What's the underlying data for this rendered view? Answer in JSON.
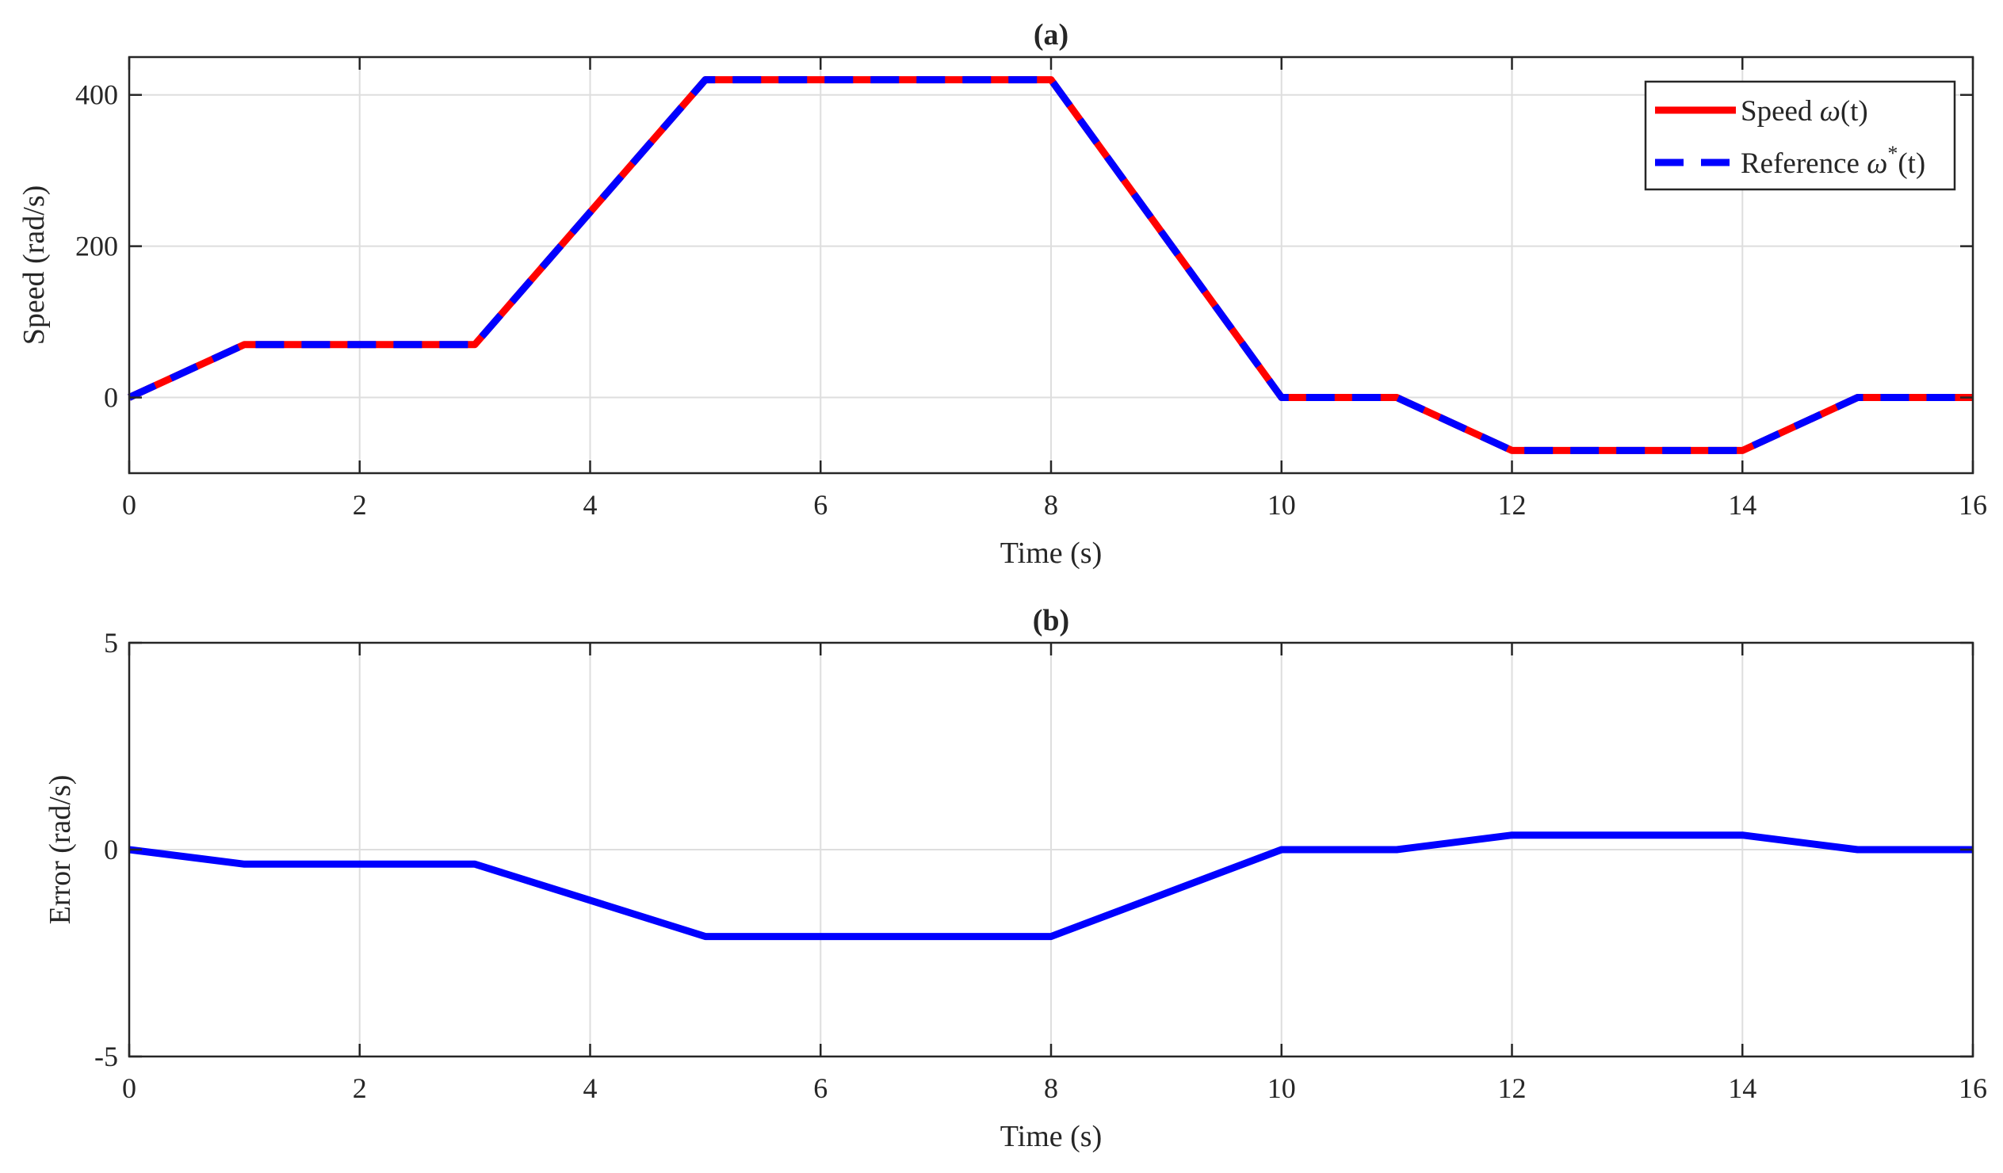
{
  "chart_data": [
    {
      "type": "line",
      "title": "(a)",
      "xlabel": "Time (s)",
      "ylabel": "Speed (rad/s)",
      "xlim": [
        0,
        16
      ],
      "ylim": [
        -100,
        450
      ],
      "xticks": [
        0,
        2,
        4,
        6,
        8,
        10,
        12,
        14,
        16
      ],
      "xtick_labels": [
        "0",
        "2",
        "4",
        "6",
        "8",
        "10",
        "12",
        "14",
        "16"
      ],
      "yticks": [
        0,
        200,
        400
      ],
      "ytick_labels": [
        "0",
        "200",
        "400"
      ],
      "grid": true,
      "legend": {
        "position": "top-right",
        "entries": [
          {
            "prefix": "Speed ",
            "symbol": "ω",
            "superscript": "",
            "suffix": "(t)"
          },
          {
            "prefix": "Reference ",
            "symbol": "ω",
            "superscript": "*",
            "suffix": "(t)"
          }
        ]
      },
      "series": [
        {
          "color": "#ff0000",
          "style": "solid",
          "x": [
            0,
            1,
            3,
            5,
            8,
            10,
            11,
            12,
            14,
            15,
            16
          ],
          "y": [
            0,
            70,
            70,
            420,
            420,
            0,
            0,
            -70,
            -70,
            0,
            0
          ]
        },
        {
          "color": "#0000ff",
          "style": "dashed",
          "x": [
            0,
            1,
            3,
            5,
            8,
            10,
            11,
            12,
            14,
            15,
            16
          ],
          "y": [
            0,
            70,
            70,
            420,
            420,
            0,
            0,
            -70,
            -70,
            0,
            0
          ]
        }
      ]
    },
    {
      "type": "line",
      "title": "(b)",
      "xlabel": "Time (s)",
      "ylabel": "Error (rad/s)",
      "xlim": [
        0,
        16
      ],
      "ylim": [
        -5,
        5
      ],
      "xticks": [
        0,
        2,
        4,
        6,
        8,
        10,
        12,
        14,
        16
      ],
      "xtick_labels": [
        "0",
        "2",
        "4",
        "6",
        "8",
        "10",
        "12",
        "14",
        "16"
      ],
      "yticks": [
        -5,
        0,
        5
      ],
      "ytick_labels": [
        "-5",
        "0",
        "5"
      ],
      "grid": true,
      "series": [
        {
          "color": "#0000ff",
          "style": "solid",
          "x": [
            0,
            1,
            3,
            5,
            8,
            10,
            11,
            12,
            14,
            15,
            16
          ],
          "y": [
            0,
            -0.35,
            -0.35,
            -2.1,
            -2.1,
            0,
            0,
            0.35,
            0.35,
            0,
            0
          ]
        }
      ]
    }
  ]
}
